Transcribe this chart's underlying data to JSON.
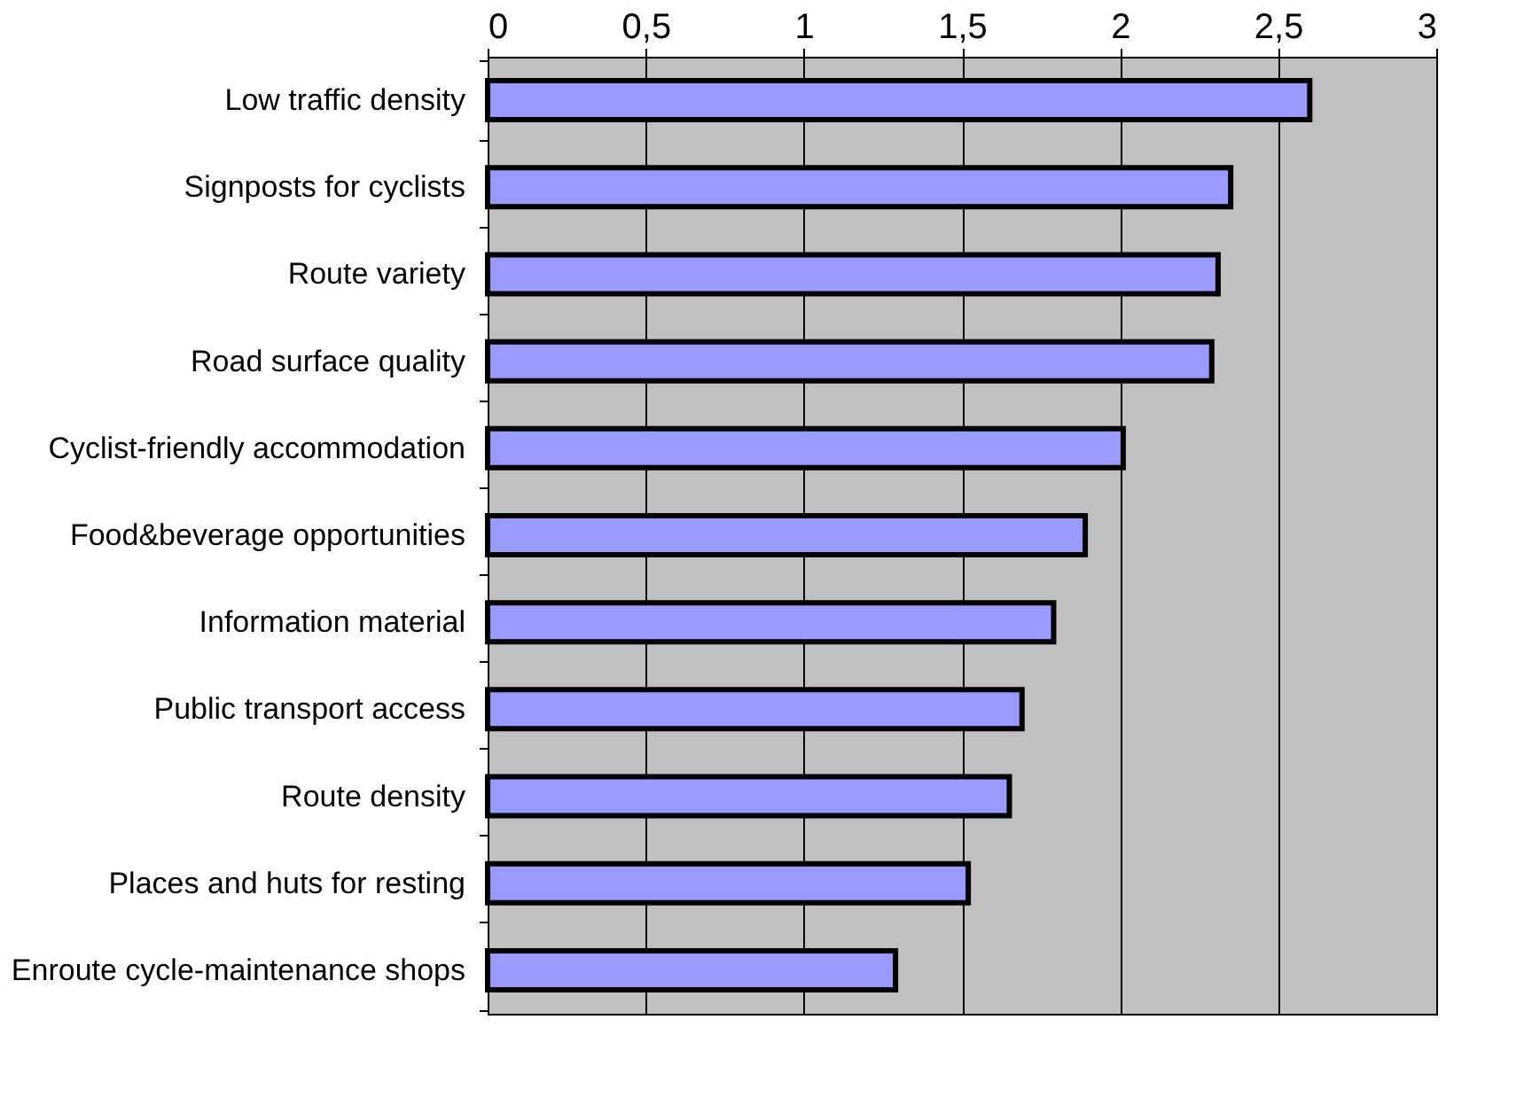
{
  "chart_data": {
    "type": "bar",
    "orientation": "horizontal",
    "categories": [
      "Low traffic density",
      "Signposts for cyclists",
      "Route variety",
      "Road surface quality",
      "Cyclist-friendly accommodation",
      "Food&beverage opportunities",
      "Information material",
      "Public transport access",
      "Route density",
      "Places and huts for resting",
      "Enroute cycle-maintenance shops"
    ],
    "values": [
      2.6,
      2.35,
      2.31,
      2.29,
      2.01,
      1.89,
      1.79,
      1.69,
      1.65,
      1.52,
      1.29
    ],
    "color": "#9999ff",
    "xlim": [
      0,
      3
    ],
    "xticks": [
      0,
      {
        "value": 0.5,
        "label": "0,5"
      },
      1,
      {
        "value": 1.5,
        "label": "1,5"
      },
      2,
      {
        "value": 2.5,
        "label": "2,5"
      },
      3
    ],
    "grid": "x"
  }
}
